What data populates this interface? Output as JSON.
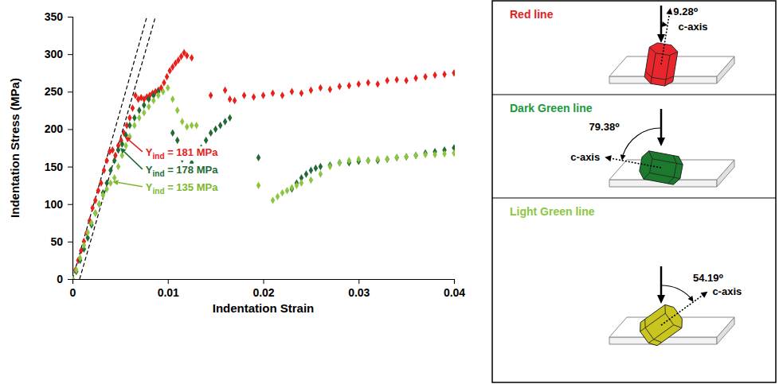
{
  "chart_data": {
    "type": "scatter",
    "xlabel": "Indentation Strain",
    "ylabel": "Indentation Stress (MPa)",
    "xlim": [
      0,
      0.04
    ],
    "ylim": [
      0,
      350
    ],
    "xticks": [
      0,
      0.01,
      0.02,
      0.03,
      0.04
    ],
    "yticks": [
      0,
      50,
      100,
      150,
      200,
      250,
      300,
      350
    ],
    "marker": "diamond",
    "series": [
      {
        "color": "#e8201c",
        "x": [
          0,
          0.0003,
          0.0006,
          0.0009,
          0.0012,
          0.0015,
          0.0018,
          0.0021,
          0.0024,
          0.0027,
          0.003,
          0.0033,
          0.0036,
          0.0039,
          0.0042,
          0.0045,
          0.0048,
          0.0051,
          0.0054,
          0.0057,
          0.006,
          0.0063,
          0.0066,
          0.0069,
          0.0072,
          0.0075,
          0.0078,
          0.0081,
          0.0084,
          0.0087,
          0.009,
          0.0093,
          0.0096,
          0.0099,
          0.0102,
          0.0105,
          0.0108,
          0.0111,
          0.0114,
          0.0117,
          0.012,
          0.0125,
          0.0145,
          0.016,
          0.0165,
          0.017,
          0.018,
          0.019,
          0.02,
          0.021,
          0.022,
          0.023,
          0.024,
          0.025,
          0.026,
          0.027,
          0.028,
          0.029,
          0.03,
          0.031,
          0.032,
          0.033,
          0.034,
          0.035,
          0.036,
          0.037,
          0.038,
          0.039,
          0.04
        ],
        "values": [
          0,
          12,
          25,
          38,
          50,
          62,
          78,
          95,
          105,
          118,
          128,
          145,
          158,
          170,
          172,
          165,
          178,
          185,
          195,
          205,
          215,
          228,
          245,
          240,
          242,
          240,
          243,
          245,
          248,
          250,
          252,
          255,
          262,
          270,
          278,
          283,
          288,
          292,
          297,
          302,
          298,
          295,
          245,
          252,
          240,
          238,
          245,
          243,
          245,
          248,
          245,
          250,
          248,
          252,
          255,
          253,
          257,
          258,
          260,
          262,
          260,
          265,
          266,
          265,
          268,
          270,
          272,
          273,
          275
        ]
      },
      {
        "color": "#1f6b34",
        "x": [
          0,
          0.0004,
          0.0008,
          0.0012,
          0.0016,
          0.002,
          0.0024,
          0.0028,
          0.0032,
          0.0036,
          0.004,
          0.0044,
          0.0048,
          0.0052,
          0.0056,
          0.006,
          0.0065,
          0.007,
          0.0075,
          0.008,
          0.0085,
          0.009,
          0.0105,
          0.011,
          0.0115,
          0.012,
          0.0125,
          0.013,
          0.0135,
          0.014,
          0.0145,
          0.015,
          0.0155,
          0.016,
          0.0165,
          0.0195,
          0.023,
          0.0235,
          0.024,
          0.0245,
          0.025,
          0.0255,
          0.026,
          0.027,
          0.028,
          0.029,
          0.03,
          0.031,
          0.032,
          0.033,
          0.034,
          0.035,
          0.036,
          0.037,
          0.038,
          0.039,
          0.04
        ],
        "values": [
          0,
          10,
          25,
          40,
          55,
          72,
          88,
          100,
          115,
          128,
          145,
          158,
          172,
          180,
          192,
          205,
          215,
          225,
          232,
          240,
          245,
          250,
          195,
          185,
          160,
          148,
          155,
          165,
          175,
          185,
          195,
          200,
          205,
          210,
          215,
          162,
          120,
          128,
          135,
          140,
          145,
          148,
          150,
          152,
          155,
          155,
          157,
          158,
          158,
          160,
          162,
          163,
          165,
          168,
          170,
          172,
          175
        ]
      },
      {
        "color": "#8cc63f",
        "x": [
          0,
          0.0004,
          0.0008,
          0.0012,
          0.0016,
          0.002,
          0.0024,
          0.0028,
          0.0032,
          0.0036,
          0.004,
          0.0044,
          0.0048,
          0.0052,
          0.0056,
          0.006,
          0.0065,
          0.007,
          0.0075,
          0.008,
          0.0085,
          0.009,
          0.0095,
          0.01,
          0.0105,
          0.011,
          0.0115,
          0.012,
          0.0125,
          0.013,
          0.0195,
          0.021,
          0.0215,
          0.022,
          0.0225,
          0.023,
          0.0235,
          0.024,
          0.025,
          0.026,
          0.027,
          0.028,
          0.029,
          0.03,
          0.031,
          0.032,
          0.033,
          0.034,
          0.035,
          0.036,
          0.037,
          0.038,
          0.039,
          0.04
        ],
        "values": [
          0,
          12,
          28,
          45,
          62,
          75,
          88,
          100,
          112,
          120,
          128,
          135,
          150,
          165,
          178,
          190,
          205,
          215,
          222,
          230,
          238,
          245,
          250,
          255,
          240,
          225,
          210,
          203,
          205,
          205,
          125,
          105,
          110,
          115,
          118,
          122,
          125,
          128,
          132,
          140,
          150,
          155,
          158,
          160,
          158,
          160,
          160,
          162,
          163,
          165,
          166,
          166,
          167,
          168
        ]
      }
    ],
    "reference_lines": [
      {
        "color": "#000000",
        "line_style": "dashed",
        "x": [
          0,
          0.0078
        ],
        "y": [
          0,
          350
        ]
      },
      {
        "color": "#000000",
        "line_style": "dashed",
        "x": [
          0.00075,
          0.0087
        ],
        "y": [
          0,
          350
        ]
      }
    ],
    "annotations": [
      {
        "text": "Y",
        "subscript": "ind",
        "suffix": " = 181 MPa",
        "color": "#e8201c",
        "arrow_to": [
          0.0055,
          190
        ]
      },
      {
        "text": "Y",
        "subscript": "ind",
        "suffix": " = 178 MPa",
        "color": "#1f6b34",
        "arrow_to": [
          0.005,
          175
        ]
      },
      {
        "text": "Y",
        "subscript": "ind",
        "suffix": " = 135 MPa",
        "color": "#7cb82f",
        "arrow_to": [
          0.0042,
          130
        ]
      }
    ]
  },
  "panel": {
    "items": [
      {
        "title": "Red line",
        "color": "#e8201c",
        "crystal_color": "#e8262b",
        "angle": 9.28,
        "angle_label": "9.28⁰",
        "side": "right",
        "axis_label": "c-axis"
      },
      {
        "title": "Dark Green line",
        "color": "#1a9a3c",
        "crystal_color": "#1c7a2e",
        "angle": 79.38,
        "angle_label": "79.38⁰",
        "side": "left",
        "axis_label": "c-axis"
      },
      {
        "title": "Light Green line",
        "color": "#8cc63f",
        "crystal_color": "#c9c41e",
        "angle": 54.19,
        "angle_label": "54.19⁰",
        "side": "right",
        "axis_label": "c-axis"
      }
    ]
  }
}
